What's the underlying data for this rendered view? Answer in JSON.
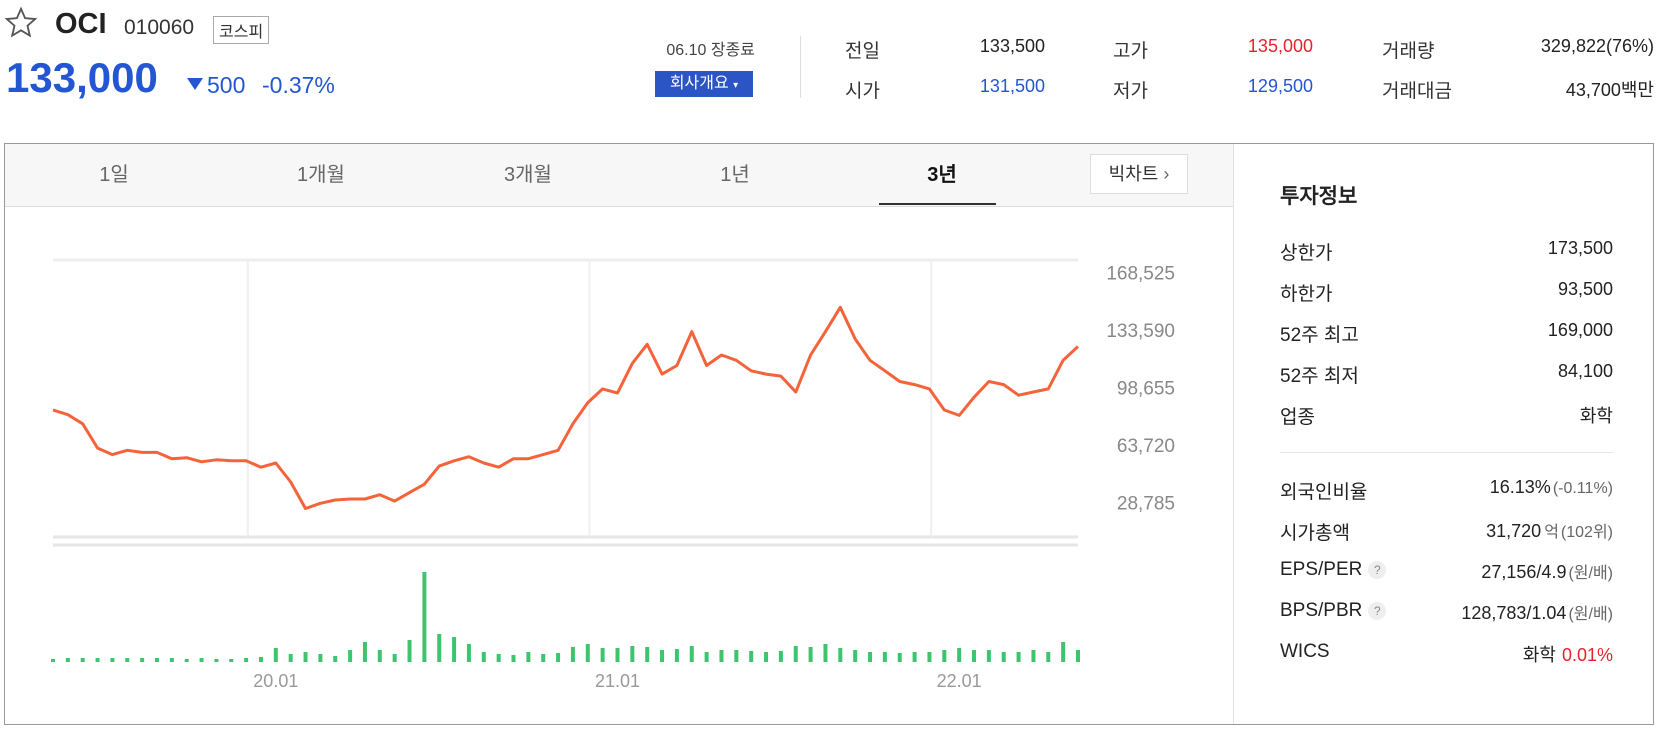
{
  "header": {
    "name": "OCI",
    "code": "010060",
    "market": "코스피",
    "price": "133,000",
    "change": "500",
    "change_rate": "-0.37%",
    "date_status": "06.10 장종료",
    "company_button": "회사개요"
  },
  "stats": [
    {
      "label": "전일",
      "value": "133,500"
    },
    {
      "label": "고가",
      "value": "135,000"
    },
    {
      "label": "거래량",
      "value": "329,822(76%)"
    },
    {
      "label": "시가",
      "value": "131,500"
    },
    {
      "label": "저가",
      "value": "129,500"
    },
    {
      "label": "거래대금",
      "value": "43,700",
      "unit": "백만"
    }
  ],
  "tabs": [
    "1일",
    "1개월",
    "3개월",
    "1년",
    "3년"
  ],
  "big_chart": "빅차트",
  "chart_data": {
    "type": "line",
    "categories": [
      null,
      null,
      null,
      null,
      null,
      null,
      null,
      null,
      null,
      null,
      null,
      null,
      null,
      null,
      null,
      "20.01",
      null,
      null,
      null,
      null,
      null,
      null,
      null,
      null,
      null,
      null,
      null,
      null,
      null,
      null,
      null,
      null,
      null,
      null,
      null,
      null,
      null,
      null,
      "21.01",
      null,
      null,
      null,
      null,
      null,
      null,
      null,
      null,
      null,
      null,
      null,
      null,
      null,
      null,
      null,
      null,
      null,
      null,
      null,
      null,
      null,
      null,
      "22.01",
      null,
      null,
      null,
      null,
      null,
      null,
      null,
      null
    ],
    "series": [
      {
        "color": "#f4633a",
        "values": [
          84900,
          82000,
          76500,
          61700,
          57800,
          60400,
          59100,
          59100,
          55300,
          55900,
          53400,
          54600,
          54000,
          54000,
          50100,
          52700,
          41100,
          25000,
          28200,
          30200,
          30800,
          30800,
          33400,
          29500,
          34700,
          39800,
          50800,
          54000,
          56500,
          52700,
          50100,
          55300,
          55300,
          57800,
          60400,
          76500,
          89400,
          97700,
          95200,
          113200,
          124800,
          106700,
          111900,
          132500,
          111900,
          118300,
          115100,
          108700,
          106700,
          105500,
          95800,
          118300,
          132500,
          147300,
          128000,
          115100,
          108700,
          102200,
          100300,
          97700,
          84900,
          81600,
          92600,
          102200,
          100300,
          93900,
          95800,
          97700,
          115100,
          123500
        ]
      },
      {
        "color": "#3ec46d",
        "axis": "y2",
        "values": [
          3,
          4,
          4,
          4,
          4,
          4,
          4,
          4,
          4,
          3,
          4,
          3,
          3,
          4,
          5,
          14,
          8,
          10,
          8,
          6,
          12,
          20,
          12,
          8,
          22,
          90,
          28,
          25,
          18,
          10,
          8,
          7,
          10,
          8,
          9,
          15,
          18,
          14,
          14,
          16,
          15,
          12,
          13,
          16,
          10,
          12,
          12,
          11,
          10,
          11,
          16,
          15,
          18,
          14,
          12,
          10,
          10,
          9,
          10,
          10,
          12,
          14,
          12,
          12,
          10,
          10,
          12,
          10,
          20,
          12
        ]
      }
    ],
    "ylim": [
      7700,
      173000
    ],
    "yticks": [
      {
        "value": 168525,
        "label": "168,525"
      },
      {
        "value": 133590,
        "label": "133,590"
      },
      {
        "value": 98655,
        "label": "98,655"
      },
      {
        "value": 63720,
        "label": "63,720"
      },
      {
        "value": 28785,
        "label": "28,785"
      }
    ],
    "y2lim": [
      0,
      100
    ]
  },
  "invest_info": {
    "title": "투자정보",
    "rows": [
      {
        "label": "상한가",
        "value": "173,500"
      },
      {
        "label": "하한가",
        "value": "93,500"
      },
      {
        "label": "52주 최고",
        "value": "169,000"
      },
      {
        "label": "52주 최저",
        "value": "84,100"
      },
      {
        "label": "업종",
        "value": "화학"
      },
      {
        "label": "외국인비율",
        "value": "16.13%",
        "sub": "(-0.11%)"
      },
      {
        "label": "시가총액",
        "value": "31,720",
        "unit": "억",
        "sub": "(102위)"
      },
      {
        "label": "EPS/PER",
        "help": "?",
        "value": "27,156/4.9",
        "sub": "(원/배)"
      },
      {
        "label": "BPS/PBR",
        "help": "?",
        "value": "128,783/1.04",
        "sub": "(원/배)"
      },
      {
        "label": "WICS",
        "value": "화학",
        "sub": "0.01%"
      }
    ]
  }
}
